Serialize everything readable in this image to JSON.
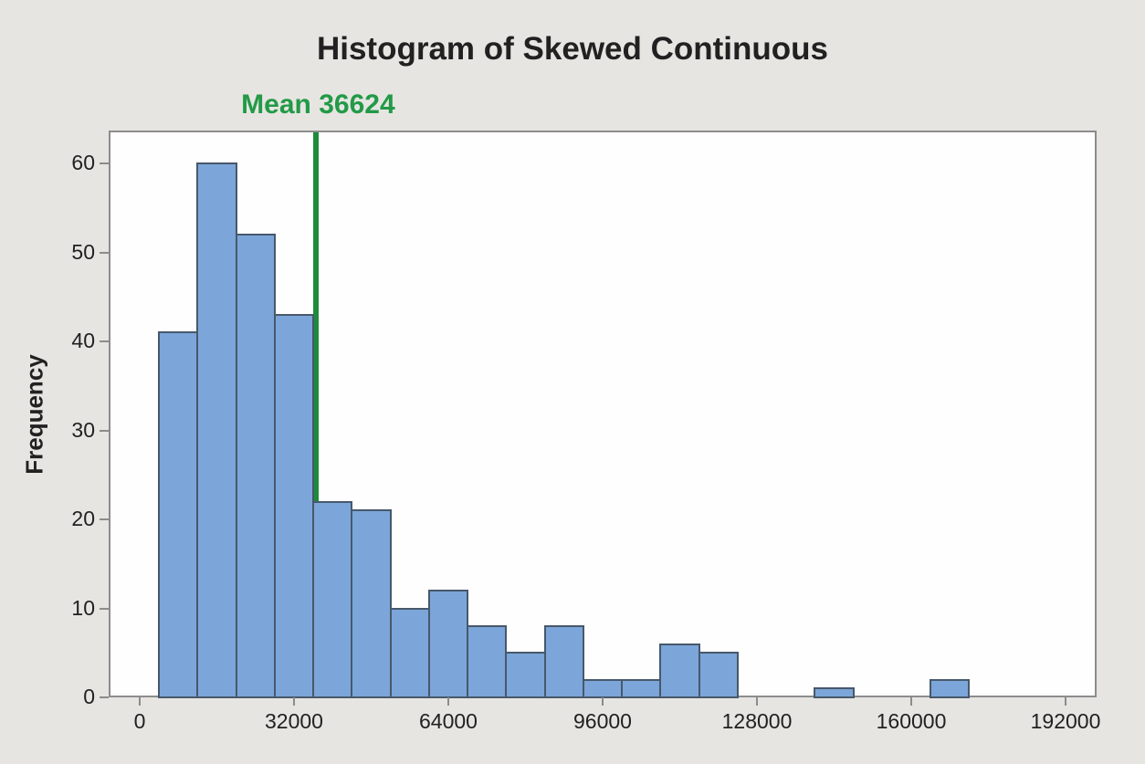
{
  "chart_data": {
    "type": "bar",
    "subtype": "histogram",
    "title": "Histogram of Skewed Continuous",
    "xlabel": "",
    "ylabel": "Frequency",
    "grid": false,
    "legend": "none",
    "bin_width": 8000,
    "bins": [
      {
        "start": 4000,
        "end": 12000,
        "frequency": 41
      },
      {
        "start": 12000,
        "end": 20000,
        "frequency": 60
      },
      {
        "start": 20000,
        "end": 28000,
        "frequency": 52
      },
      {
        "start": 28000,
        "end": 36000,
        "frequency": 43
      },
      {
        "start": 36000,
        "end": 44000,
        "frequency": 22
      },
      {
        "start": 44000,
        "end": 52000,
        "frequency": 21
      },
      {
        "start": 52000,
        "end": 60000,
        "frequency": 10
      },
      {
        "start": 60000,
        "end": 68000,
        "frequency": 12
      },
      {
        "start": 68000,
        "end": 76000,
        "frequency": 8
      },
      {
        "start": 76000,
        "end": 84000,
        "frequency": 5
      },
      {
        "start": 84000,
        "end": 92000,
        "frequency": 8
      },
      {
        "start": 92000,
        "end": 100000,
        "frequency": 2
      },
      {
        "start": 100000,
        "end": 108000,
        "frequency": 2
      },
      {
        "start": 108000,
        "end": 116000,
        "frequency": 6
      },
      {
        "start": 116000,
        "end": 124000,
        "frequency": 5
      },
      {
        "start": 140000,
        "end": 148000,
        "frequency": 1
      },
      {
        "start": 164000,
        "end": 172000,
        "frequency": 2
      }
    ],
    "x_ticks": [
      0,
      32000,
      64000,
      96000,
      128000,
      160000,
      192000
    ],
    "y_ticks": [
      0,
      10,
      20,
      30,
      40,
      50,
      60
    ],
    "xlim": [
      -6400,
      198400
    ],
    "ylim": [
      0,
      63.7
    ],
    "annotation": {
      "text": "Mean 36624",
      "mean_value": 36624
    },
    "colors": {
      "canvas_background": "#e7e5e2",
      "plot_background": "#fefefe",
      "frame_border": "#8c8c8c",
      "bar_fill": "#7ca6d9",
      "bar_border": "#47586b",
      "mean_line": "#1e8a3c",
      "mean_text": "#229a47",
      "text": "#212121"
    }
  }
}
